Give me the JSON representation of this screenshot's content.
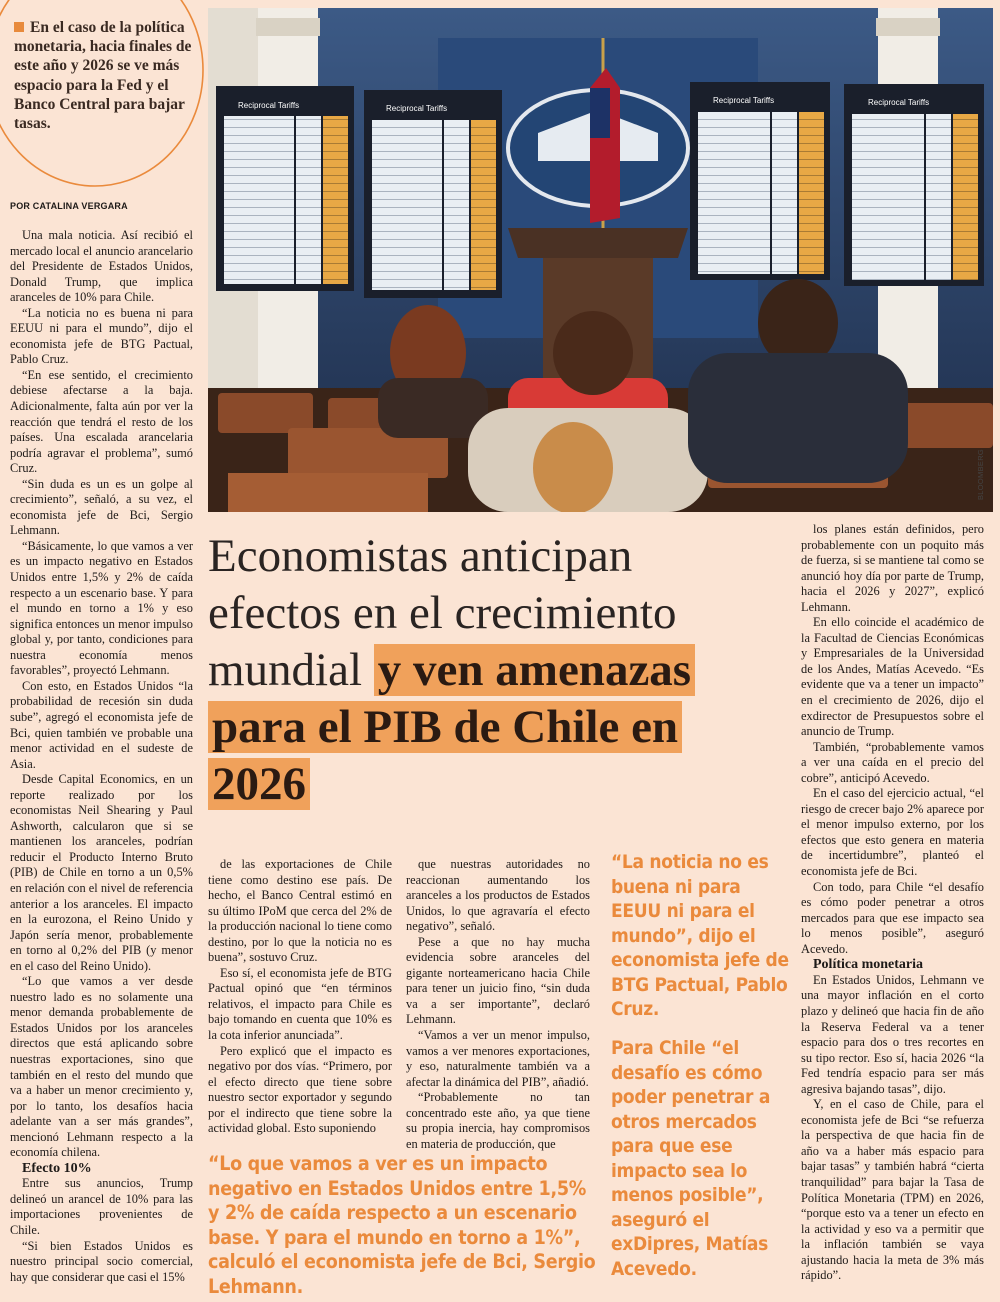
{
  "callout": "En el caso de la política monetaria, hacia finales de este año y 2026 se ve más espacio para la Fed y el Banco Central para bajar tasas.",
  "byline": "POR CATALINA VERGARA",
  "photo": {
    "board_title": "Reciprocal Tariffs",
    "credit": "BLOOMBERG"
  },
  "headline": {
    "light": "Economistas anticipan efectos en el crecimiento mundial",
    "bold": "y ven amenazas para el PIB de Chile en 2026"
  },
  "columns": {
    "left": {
      "paragraphs": [
        "Una mala noticia. Así recibió el mercado local el anuncio arancelario del Presidente de Estados Unidos, Donald Trump, que implica aranceles de 10% para Chile.",
        "“La noticia no es buena ni para EEUU ni para el mundo”, dijo el economista jefe de BTG Pactual, Pablo Cruz.",
        "“En ese sentido, el crecimiento debiese afectarse a la baja. Adicionalmente, falta aún por ver la reacción que tendrá el resto de los países. Una escalada arancelaria podría agravar el problema”, sumó Cruz.",
        "“Sin duda es un es un golpe al crecimiento”, señaló, a su vez, el economista jefe de Bci, Sergio Lehmann.",
        "“Básicamente, lo que vamos a ver es un impacto negativo en Estados Unidos entre 1,5% y 2% de caída respecto a un escenario base. Y para el mundo en torno a 1% y eso significa entonces un menor impulso global y, por tanto, condiciones para nuestra economía menos favorables”, proyectó Lehmann.",
        "Con esto, en Estados Unidos “la probabilidad de recesión sin duda sube”, agregó el economista jefe de Bci, quien también ve probable una menor actividad en el sudeste de Asia.",
        "Desde Capital Economics, en un reporte realizado por los economistas Neil Shearing y Paul Ashworth, calcularon que si se mantienen los aranceles, podrían reducir el Producto Interno Bruto (PIB) de Chile en torno a un 0,5% en relación con el nivel de referencia anterior a los aranceles. El impacto en la eurozona, el Reino Unido y Japón sería menor, probablemente en torno al 0,2% del PIB (y menor en el caso del Reino Unido).",
        "“Lo que vamos a ver desde nuestro lado es no solamente una menor demanda probablemente de Estados Unidos por los aranceles directos que está aplicando sobre nuestras exportaciones, sino que también en el resto del mundo que va a haber un menor crecimiento y, por lo tanto, los desafíos hacia adelante van a ser más grandes”, mencionó Lehmann respecto a la economía chilena."
      ],
      "subhead": "Efecto 10%",
      "paragraphs_2": [
        "Entre sus anuncios, Trump delineó un arancel de 10% para las importaciones provenientes de Chile.",
        "“Si bien Estados Unidos es nuestro principal socio comercial, hay que considerar que casi el 15%"
      ]
    },
    "middle_1": {
      "paragraphs": [
        "de las exportaciones de Chile tiene como destino ese país. De hecho, el Banco Central estimó en su último IPoM que cerca del 2% de la producción nacional lo tiene como destino, por lo que la noticia no es buena”, sostuvo Cruz.",
        "Eso sí, el economista jefe de BTG Pactual opinó que “en términos relativos, el impacto para Chile es bajo tomando en cuenta que 10% es la cota inferior anunciada”.",
        "Pero explicó que el impacto es negativo por dos vías. “Primero, por el efecto directo que tiene sobre nuestro sector exportador y segundo por el indirecto que tiene sobre la actividad global. Esto suponiendo"
      ]
    },
    "middle_2": {
      "paragraphs": [
        "que nuestras autoridades no reaccionan aumentando los aranceles a los productos de Estados Unidos, lo que agravaría el efecto negativo”, señaló.",
        "Pese a que no hay mucha evidencia sobre aranceles del gigante norteamericano hacia Chile para tener un juicio fino, “sin duda va a ser importante”, declaró Lehmann.",
        "“Vamos a ver un menor impulso, vamos a ver menores exportaciones, y eso, naturalmente también va a afectar la dinámica del PIB”, añadió.",
        "“Probablemente no tan concentrado este año, ya que tiene su propia inercia, hay compromisos en materia de producción, que"
      ]
    },
    "right": {
      "paragraphs": [
        "los planes están definidos, pero probablemente con un poquito más de fuerza, si se mantiene tal como se anunció hoy día por parte de Trump, hacia el 2026 y 2027”, explicó Lehmann.",
        "En ello coincide el académico de la Facultad de Ciencias Económicas y Empresariales de la Universidad de los Andes, Matías Acevedo. “Es evidente que va a tener un impacto” en el crecimiento de 2026, dijo el exdirector de Presupuestos sobre el anuncio de Trump.",
        "También, “probablemente vamos a ver una caída en el precio del cobre”, anticipó Acevedo.",
        "En el caso del ejercicio actual, “el riesgo de crecer bajo 2% aparece por el menor impulso externo, por los efectos que esto genera en materia de incertidumbre”, planteó el economista jefe de Bci.",
        "Con todo, para Chile “el desafío es cómo poder penetrar a otros mercados para que ese impacto sea lo menos posible”, aseguró Acevedo."
      ],
      "subhead": "Política monetaria",
      "paragraphs_2": [
        "En Estados Unidos, Lehmann ve una mayor inflación en el corto plazo y delineó que hacia fin de año la Reserva Federal va a tener espacio para dos o tres recortes en su tipo rector. Eso sí, hacia 2026 “la Fed tendría espacio para ser más agresiva bajando tasas”, dijo.",
        "Y, en el caso de Chile, para el economista jefe de Bci “se refuerza la perspectiva de que hacia fin de año va a haber más espacio para bajar tasas” y también habrá “cierta tranquilidad” para bajar la Tasa de Política Monetaria (TPM) en 2026, “porque esto va a tener un efecto en la actividad y eso va a permitir que la inflación también se vaya ajustando hacia la meta de 3% más rápido”."
      ]
    }
  },
  "pull_quotes": [
    "“La noticia no es buena ni para EEUU ni para el mundo”, dijo el economista jefe de BTG Pactual, Pablo Cruz.",
    "Para Chile “el desafío es cómo poder penetrar a otros mercados para que ese impacto sea lo menos posible”, aseguró el exDipres, Matías Acevedo.",
    "“Lo que vamos a ver es un impacto negativo en Estados Unidos entre 1,5% y 2% de caída respecto a un escenario base. Y para el mundo en torno a 1%”, calculó el economista jefe de Bci, Sergio Lehmann."
  ]
}
